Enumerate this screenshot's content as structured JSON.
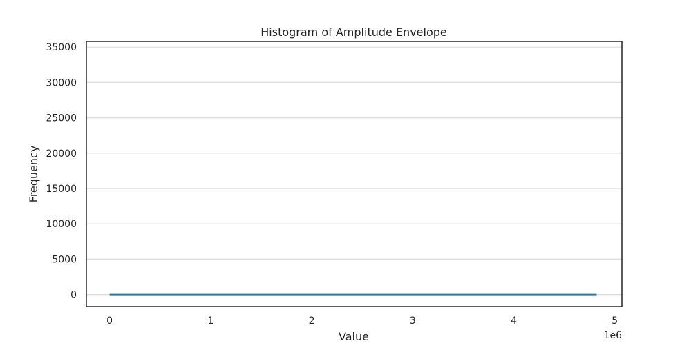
{
  "chart_data": {
    "type": "line",
    "title": "Histogram of Amplitude Envelope",
    "xlabel": "Value",
    "ylabel": "Frequency",
    "x_offset_label": "1e6",
    "xlim": [
      -0.23,
      5.07
    ],
    "ylim": [
      -1700,
      35800
    ],
    "x_ticks": [
      0,
      1,
      2,
      3,
      4,
      5
    ],
    "x_tick_labels": [
      "0",
      "1",
      "2",
      "3",
      "4",
      "5"
    ],
    "y_ticks": [
      0,
      5000,
      10000,
      15000,
      20000,
      25000,
      30000,
      35000
    ],
    "y_tick_labels": [
      "0",
      "5000",
      "10000",
      "15000",
      "20000",
      "25000",
      "30000",
      "35000"
    ],
    "grid": "y",
    "series": [
      {
        "color": "#1f77b4",
        "x": [
          0,
          4.82
        ],
        "y": [
          0,
          0
        ]
      }
    ]
  }
}
